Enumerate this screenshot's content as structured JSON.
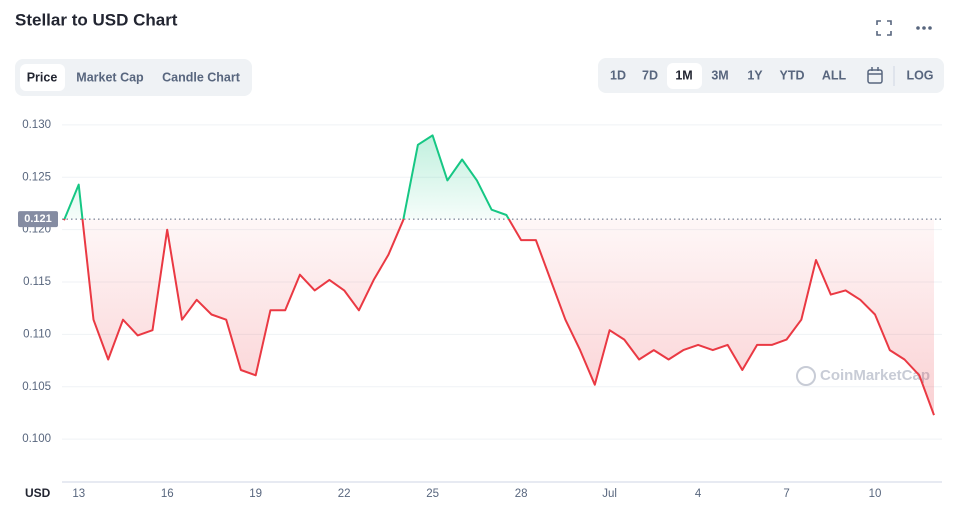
{
  "ui": {
    "title": "Stellar to USD Chart",
    "tabs": [
      "Price",
      "Market Cap",
      "Candle Chart"
    ],
    "ranges": [
      "1D",
      "7D",
      "1M",
      "3M",
      "1Y",
      "YTD",
      "ALL"
    ],
    "log": "LOG",
    "watermark": "CoinMarketCap"
  },
  "chart_data": {
    "type": "line",
    "y_unit": "USD",
    "categories": [
      null,
      "13",
      null,
      null,
      null,
      null,
      null,
      "16",
      null,
      null,
      null,
      null,
      null,
      "19",
      null,
      null,
      null,
      null,
      null,
      "22",
      null,
      null,
      null,
      null,
      null,
      "25",
      null,
      null,
      null,
      null,
      null,
      "28",
      null,
      null,
      null,
      null,
      null,
      "Jul",
      null,
      null,
      null,
      null,
      null,
      "4",
      null,
      null,
      null,
      null,
      null,
      "7",
      null,
      null,
      null,
      null,
      null,
      "10",
      null,
      null,
      null,
      null
    ],
    "values": [
      0.1209,
      0.1243,
      0.1114,
      0.1076,
      0.1114,
      0.1099,
      0.1104,
      0.12,
      0.1114,
      0.1133,
      0.1119,
      0.1114,
      0.1066,
      0.1061,
      0.1123,
      0.1123,
      0.1157,
      0.1142,
      0.1152,
      0.1142,
      0.1123,
      0.1152,
      0.1176,
      0.1209,
      0.1281,
      0.129,
      0.1247,
      0.1267,
      0.1247,
      0.1219,
      0.1214,
      0.119,
      0.119,
      0.1152,
      0.1114,
      0.1085,
      0.1052,
      0.1104,
      0.1095,
      0.1076,
      0.1085,
      0.1076,
      0.1085,
      0.109,
      0.1085,
      0.109,
      0.1066,
      0.109,
      0.109,
      0.1095,
      0.1114,
      0.1171,
      0.1138,
      0.1142,
      0.1133,
      0.1119,
      0.1085,
      0.1076,
      0.1061,
      0.1023
    ],
    "reference": 0.121,
    "up_color": "#16c784",
    "down_color": "#ea3943",
    "ylim": [
      0.0961,
      0.1319
    ],
    "yticks": [
      {
        "value": 0.1,
        "label": "0.100"
      },
      {
        "value": 0.105,
        "label": "0.105"
      },
      {
        "value": 0.11,
        "label": "0.110"
      },
      {
        "value": 0.115,
        "label": "0.115"
      },
      {
        "value": 0.12,
        "label": "0.120"
      },
      {
        "value": 0.125,
        "label": "0.125"
      },
      {
        "value": 0.13,
        "label": "0.130"
      }
    ],
    "grid": true
  }
}
